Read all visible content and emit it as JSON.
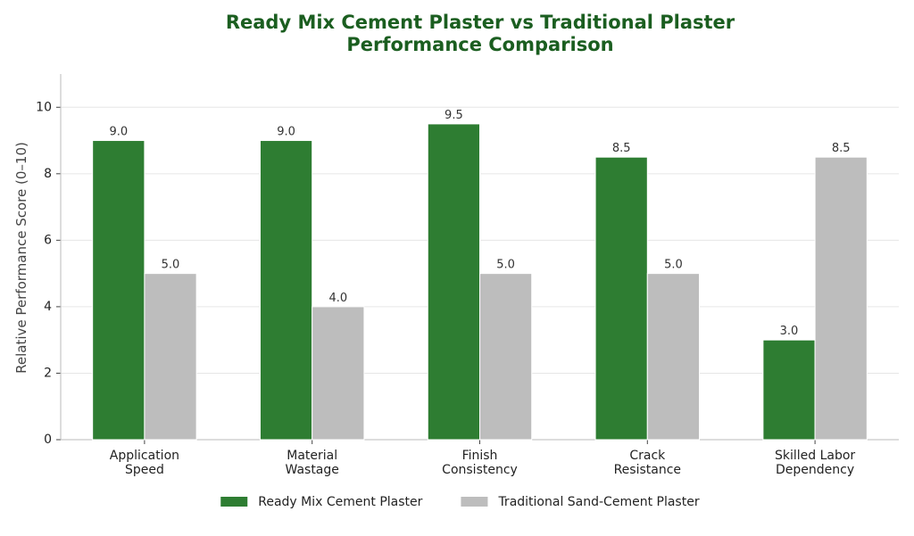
{
  "chart_data": {
    "type": "bar",
    "title": "Ready Mix Cement Plaster vs Traditional Plaster\nPerformance Comparison",
    "y_label": "Relative Performance Score (0–10)",
    "categories": [
      "Application\nSpeed",
      "Material\nWastage",
      "Finish\nConsistency",
      "Crack\nResistance",
      "Skilled Labor\nDependency"
    ],
    "series": [
      {
        "name": "Ready Mix Cement Plaster",
        "color": "#2e7d32",
        "values": [
          9,
          9,
          9.5,
          8.5,
          3
        ],
        "value_labels": [
          "9.0",
          "9.0",
          "9.5",
          "8.5",
          "3.0"
        ]
      },
      {
        "name": "Traditional Sand-Cement Plaster",
        "color": "#bdbdbd",
        "values": [
          5,
          4,
          5,
          5,
          8.5
        ],
        "value_labels": [
          "5.0",
          "4.0",
          "5.0",
          "5.0",
          "8.5"
        ]
      }
    ],
    "ylim": [
      0,
      11
    ],
    "yticks": [
      0,
      2,
      4,
      6,
      8,
      10
    ],
    "grid": true,
    "legend": "bottom"
  }
}
